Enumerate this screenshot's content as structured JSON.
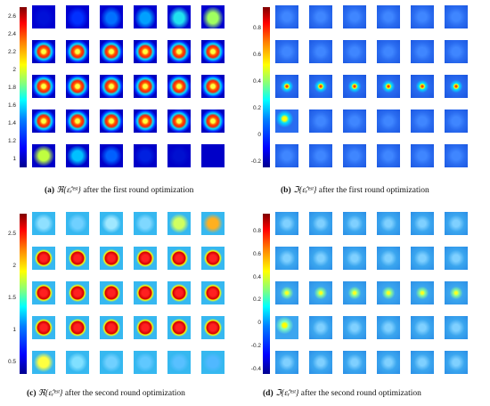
{
  "panels": [
    {
      "id": "a",
      "label": "(a)",
      "math": "ℜ{ε̂ᵣᵉˢᵗ}",
      "caption_text": "after the first round optimization",
      "colorbar_ticks": [
        "2.6",
        "2.4",
        "2.2",
        "2",
        "1.8",
        "1.6",
        "1.4",
        "1.2",
        "1"
      ],
      "colorbar_range": [
        0.9,
        2.7
      ]
    },
    {
      "id": "b",
      "label": "(b)",
      "math": "ℑ{ε̂ᵣᵉˢᵗ}",
      "caption_text": "after the first round optimization",
      "colorbar_ticks": [
        "0.8",
        "0.6",
        "0.4",
        "0.2",
        "0",
        "-0.2"
      ],
      "colorbar_range": [
        -0.25,
        0.95
      ]
    },
    {
      "id": "c",
      "label": "(c)",
      "math": "ℜ{ε̂ᵣᵉˢᵗ}",
      "caption_text": "after the second round optimization",
      "colorbar_ticks": [
        "2.5",
        "2",
        "1.5",
        "1",
        "0.5"
      ],
      "colorbar_range": [
        0.3,
        2.8
      ]
    },
    {
      "id": "d",
      "label": "(d)",
      "math": "ℑ{ε̂ᵣᵉˢᵗ}",
      "caption_text": "after the second round optimization",
      "colorbar_ticks": [
        "0.8",
        "0.6",
        "0.4",
        "0.2",
        "0",
        "-0.2",
        "-0.4"
      ],
      "colorbar_range": [
        -0.45,
        0.95
      ]
    }
  ],
  "colors": {
    "low": "#00008f",
    "mid": "#00ffff",
    "high": "#800000",
    "background_a": "#0000c8",
    "background_b": "#2a6cf0",
    "background_c": "#36b8f0",
    "background_d": "#3ba6ef"
  }
}
